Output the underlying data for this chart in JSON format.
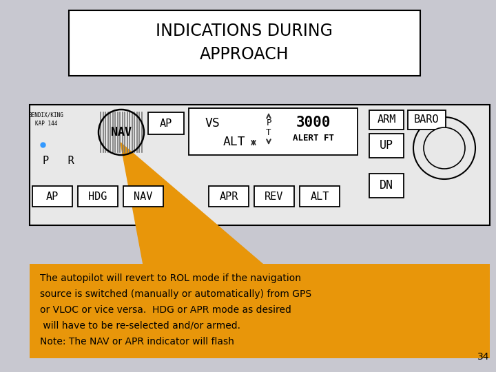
{
  "bg_color": "#c8c8d0",
  "title": "INDICATIONS DURING\nAPPROACH",
  "title_box_color": "#ffffff",
  "title_box_edge": "#000000",
  "panel_bg": "#e8e8e8",
  "panel_edge": "#000000",
  "orange_color": "#e8960a",
  "note_text_line1": "The autopilot will revert to ROL mode if the navigation",
  "note_text_line2": "source is switched (manually or automatically) from GPS",
  "note_text_line3": "or VLOC or vice versa.  HDG or APR mode as desired",
  "note_text_line4": " will have to be re-selected and/or armed.",
  "note_text_line5": "Note: The NAV or APR indicator will flash",
  "page_number": "34",
  "brand_text": "BENDIX/KING\nKAP 144",
  "dot_color": "#3399ff",
  "pr_text": "P   R",
  "alt_value": "3000",
  "alert_text": "ALERT FT"
}
